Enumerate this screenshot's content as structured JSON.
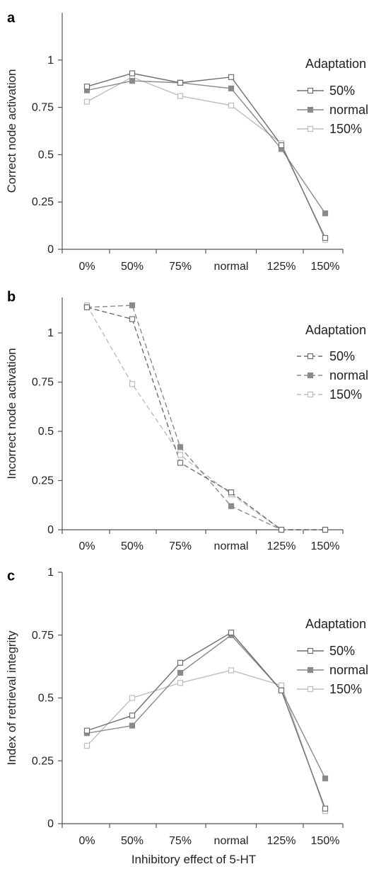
{
  "chart_data": [
    {
      "panel": "a",
      "type": "line",
      "categories": [
        "0%",
        "50%",
        "75%",
        "normal",
        "125%",
        "150%"
      ],
      "ylabel": "Correct node activation",
      "yticks": [
        "0",
        "0.25",
        "0.5",
        "0.75",
        "1"
      ],
      "ylim": [
        0,
        1.25
      ],
      "legend_title": "Adaptation",
      "line_style": "solid",
      "series": [
        {
          "name": "50%",
          "color": "#6e6e6e",
          "marker": "open-square",
          "values": [
            0.86,
            0.93,
            0.88,
            0.91,
            0.55,
            0.06
          ]
        },
        {
          "name": "normal",
          "color": "#8a8a8a",
          "marker": "filled-square",
          "values": [
            0.84,
            0.89,
            0.88,
            0.85,
            0.53,
            0.19
          ]
        },
        {
          "name": "150%",
          "color": "#bdbdbd",
          "marker": "open-square",
          "values": [
            0.78,
            0.91,
            0.81,
            0.76,
            0.56,
            0.05
          ]
        }
      ]
    },
    {
      "panel": "b",
      "type": "line",
      "categories": [
        "0%",
        "50%",
        "75%",
        "normal",
        "125%",
        "150%"
      ],
      "ylabel": "Incorrect node activation",
      "yticks": [
        "0",
        "0.25",
        "0.5",
        "0.75",
        "1"
      ],
      "ylim": [
        0,
        1.18
      ],
      "legend_title": "Adaptation",
      "line_style": "dashed",
      "series": [
        {
          "name": "50%",
          "color": "#6e6e6e",
          "marker": "open-square",
          "values": [
            1.13,
            1.07,
            0.34,
            0.19,
            0.0,
            0.0
          ]
        },
        {
          "name": "normal",
          "color": "#8a8a8a",
          "marker": "filled-square",
          "values": [
            1.13,
            1.14,
            0.42,
            0.12,
            0.0,
            0.0
          ]
        },
        {
          "name": "150%",
          "color": "#bdbdbd",
          "marker": "open-square",
          "values": [
            1.14,
            0.74,
            0.38,
            0.18,
            0.0,
            0.0
          ]
        }
      ]
    },
    {
      "panel": "c",
      "type": "line",
      "categories": [
        "0%",
        "50%",
        "75%",
        "normal",
        "125%",
        "150%"
      ],
      "xlabel": "Inhibitory effect of 5-HT",
      "ylabel": "Index of retrieval integrity",
      "yticks": [
        "0",
        "0.25",
        "0.5",
        "0.75",
        "1"
      ],
      "ylim": [
        0,
        1
      ],
      "legend_title": "Adaptation",
      "line_style": "solid",
      "series": [
        {
          "name": "50%",
          "color": "#6e6e6e",
          "marker": "open-square",
          "values": [
            0.37,
            0.43,
            0.64,
            0.76,
            0.53,
            0.06
          ]
        },
        {
          "name": "normal",
          "color": "#8a8a8a",
          "marker": "filled-square",
          "values": [
            0.36,
            0.39,
            0.6,
            0.75,
            0.53,
            0.18
          ]
        },
        {
          "name": "150%",
          "color": "#bdbdbd",
          "marker": "open-square",
          "values": [
            0.31,
            0.5,
            0.56,
            0.61,
            0.55,
            0.05
          ]
        }
      ]
    }
  ]
}
